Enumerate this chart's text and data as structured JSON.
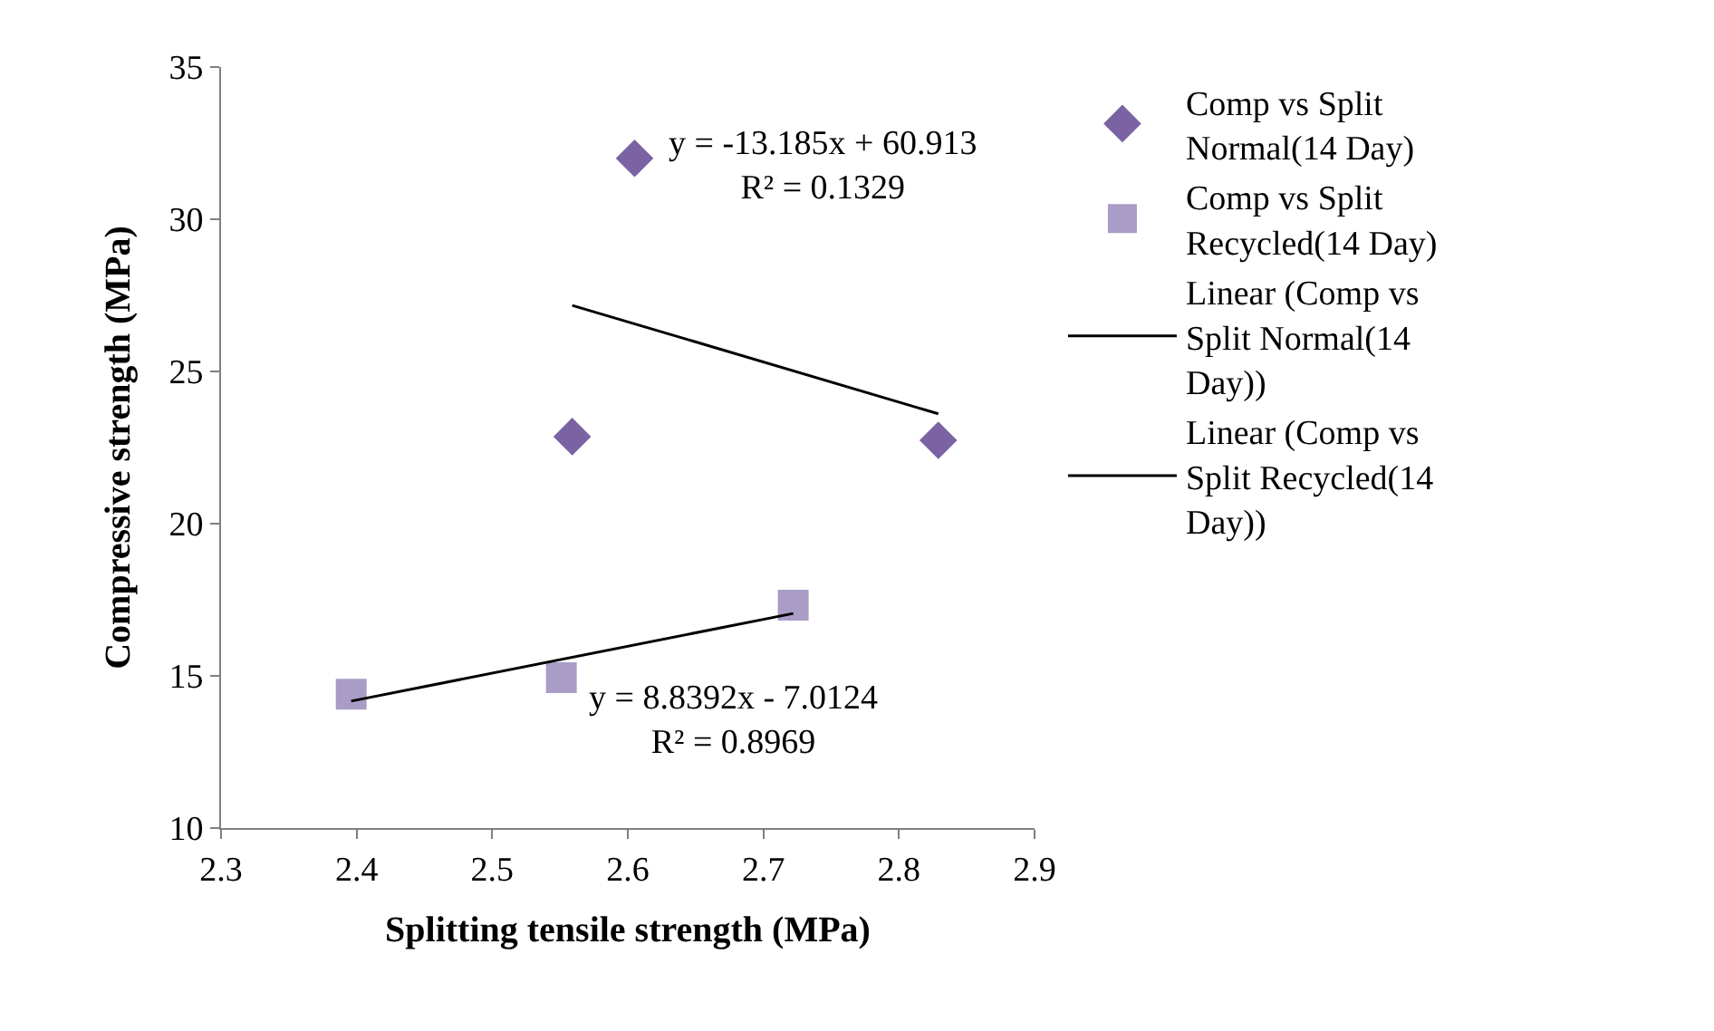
{
  "chart_data": {
    "type": "scatter",
    "xlabel": "Splitting tensile strength (MPa)",
    "ylabel": "Compressive strength (MPa)",
    "xlim": [
      2.3,
      2.9
    ],
    "xticks": [
      2.3,
      2.4,
      2.5,
      2.6,
      2.7,
      2.8,
      2.9
    ],
    "ylim": [
      10,
      35
    ],
    "yticks": [
      10,
      15,
      20,
      25,
      30,
      35
    ],
    "legend": "right",
    "series": [
      {
        "name": "Comp vs Split Normal(14 Day)",
        "marker": "diamond",
        "color": "#7b62a3",
        "x": [
          2.559,
          2.605,
          2.829
        ],
        "values": [
          22.86,
          32.0,
          22.74
        ]
      },
      {
        "name": "Comp vs Split Recycled(14 Day)",
        "marker": "square",
        "color": "#a99cc7",
        "x": [
          2.396,
          2.551,
          2.722
        ],
        "values": [
          14.4,
          14.94,
          17.32
        ]
      },
      {
        "name": "Linear (Comp vs Split Normal(14 Day))",
        "type": "line",
        "marker": "none",
        "line_style": "solid",
        "color": "#000000",
        "x": [
          2.559,
          2.829
        ],
        "values": [
          27.17,
          23.61
        ]
      },
      {
        "name": "Linear (Comp vs Split Recycled(14 Day))",
        "type": "line",
        "marker": "none",
        "line_style": "solid",
        "color": "#000000",
        "x": [
          2.396,
          2.722
        ],
        "values": [
          14.17,
          17.05
        ]
      }
    ],
    "annotations": [
      "y = -13.185x + 60.913\nR² = 0.1329",
      "y = 8.8392x - 7.0124\nR² = 0.8969"
    ]
  }
}
